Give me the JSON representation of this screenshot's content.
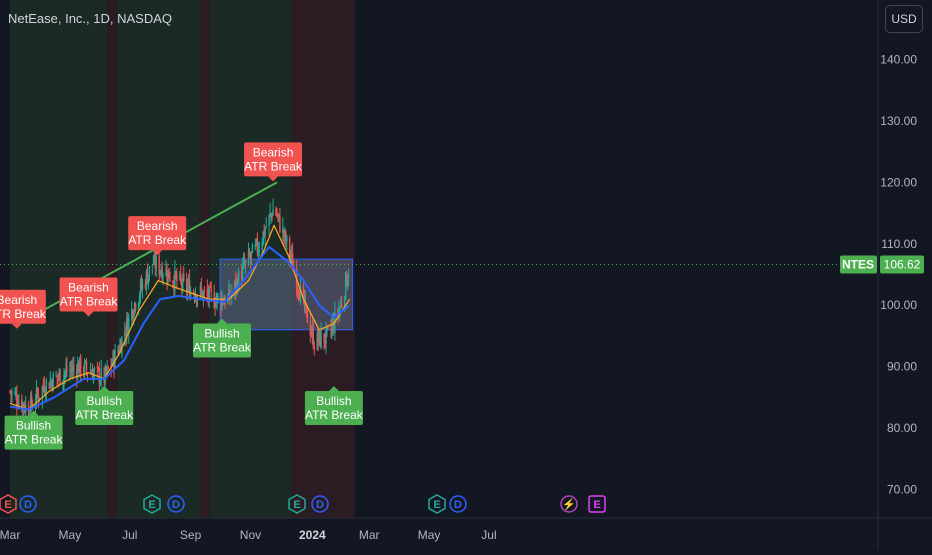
{
  "header": {
    "title": "NetEase, Inc., 1D, NASDAQ",
    "currency_button": "USD"
  },
  "price_axis": {
    "ticks": [
      "140.00",
      "130.00",
      "120.00",
      "110.00",
      "100.00",
      "90.00",
      "80.00",
      "70.00"
    ],
    "current_price": "106.62",
    "symbol": "NTES"
  },
  "time_axis": {
    "labels": [
      {
        "text": "Mar",
        "bold": false
      },
      {
        "text": "May",
        "bold": false
      },
      {
        "text": "Jul",
        "bold": false
      },
      {
        "text": "Sep",
        "bold": false
      },
      {
        "text": "Nov",
        "bold": false
      },
      {
        "text": "2024",
        "bold": true
      },
      {
        "text": "Mar",
        "bold": false
      },
      {
        "text": "May",
        "bold": false
      },
      {
        "text": "Jul",
        "bold": false
      }
    ]
  },
  "events": [
    {
      "type": "E",
      "kind": "earnings-past"
    },
    {
      "type": "D",
      "kind": "dividend"
    },
    {
      "type": "E",
      "kind": "earnings-past"
    },
    {
      "type": "D",
      "kind": "dividend"
    },
    {
      "type": "E",
      "kind": "earnings-past"
    },
    {
      "type": "D",
      "kind": "dividend"
    },
    {
      "type": "E",
      "kind": "earnings-past"
    },
    {
      "type": "D",
      "kind": "dividend"
    },
    {
      "type": "⚡",
      "kind": "split"
    },
    {
      "type": "E",
      "kind": "earnings-upcoming"
    }
  ],
  "colors": {
    "background": "#131722",
    "up": "#26a69a",
    "down": "#ef5350",
    "bull_label": "#4caf50",
    "bear_label": "#f05350",
    "ema_fast": "#f5a623",
    "ema_slow": "#2962ff",
    "trendline": "#4caf50",
    "box_fill": "#5d6987",
    "box_border": "#2962ff",
    "bull_band": "#1b2a25",
    "bear_band": "#2a1c22",
    "price_tag": "#4caf50"
  },
  "chart_data": {
    "type": "candlestick",
    "title": "NetEase, Inc., 1D, NASDAQ",
    "ylim": [
      65,
      148
    ],
    "x_range": [
      "2023-03-01",
      "2024-08-15"
    ],
    "current_price": 106.62,
    "series": [
      {
        "name": "",
        "kind": "price",
        "points": [
          [
            "2023-03-01",
            86
          ],
          [
            "2023-03-20",
            83
          ],
          [
            "2023-04-05",
            87
          ],
          [
            "2023-04-25",
            89
          ],
          [
            "2023-05-10",
            90
          ],
          [
            "2023-05-25",
            89
          ],
          [
            "2023-06-05",
            88
          ],
          [
            "2023-06-20",
            93
          ],
          [
            "2023-07-05",
            100
          ],
          [
            "2023-07-25",
            107
          ],
          [
            "2023-08-10",
            105
          ],
          [
            "2023-08-25",
            103
          ],
          [
            "2023-09-10",
            102
          ],
          [
            "2023-09-25",
            101
          ],
          [
            "2023-10-10",
            101
          ],
          [
            "2023-10-25",
            106
          ],
          [
            "2023-11-10",
            110
          ],
          [
            "2023-11-25",
            116
          ],
          [
            "2023-12-10",
            109
          ],
          [
            "2023-12-20",
            103
          ],
          [
            "2024-01-05",
            94
          ],
          [
            "2024-01-20",
            95
          ],
          [
            "2024-02-01",
            100
          ],
          [
            "2024-02-10",
            106.62
          ]
        ]
      },
      {
        "name": "",
        "kind": "ema_fast",
        "points": [
          [
            "2023-03-01",
            84
          ],
          [
            "2023-03-20",
            83
          ],
          [
            "2023-04-10",
            86
          ],
          [
            "2023-05-01",
            88
          ],
          [
            "2023-05-20",
            89
          ],
          [
            "2023-06-05",
            88
          ],
          [
            "2023-06-20",
            92
          ],
          [
            "2023-07-10",
            99
          ],
          [
            "2023-07-30",
            104
          ],
          [
            "2023-08-15",
            103
          ],
          [
            "2023-09-01",
            102
          ],
          [
            "2023-09-20",
            101
          ],
          [
            "2023-10-10",
            101
          ],
          [
            "2023-10-30",
            104
          ],
          [
            "2023-11-15",
            109
          ],
          [
            "2023-11-25",
            113
          ],
          [
            "2023-12-10",
            108
          ],
          [
            "2023-12-25",
            101
          ],
          [
            "2024-01-10",
            96
          ],
          [
            "2024-01-25",
            97
          ],
          [
            "2024-02-10",
            101
          ]
        ]
      },
      {
        "name": "",
        "kind": "ema_slow",
        "points": [
          [
            "2023-03-01",
            83.5
          ],
          [
            "2023-03-20",
            83
          ],
          [
            "2023-04-15",
            85
          ],
          [
            "2023-05-15",
            88
          ],
          [
            "2023-06-05",
            88
          ],
          [
            "2023-06-25",
            91
          ],
          [
            "2023-07-15",
            97
          ],
          [
            "2023-08-01",
            101
          ],
          [
            "2023-08-20",
            101.5
          ],
          [
            "2023-09-10",
            101
          ],
          [
            "2023-10-05",
            100.5
          ],
          [
            "2023-10-25",
            104
          ],
          [
            "2023-11-20",
            109.5
          ],
          [
            "2023-12-10",
            107
          ],
          [
            "2023-12-25",
            104
          ],
          [
            "2024-01-10",
            100
          ],
          [
            "2024-01-25",
            98
          ],
          [
            "2024-02-10",
            100
          ]
        ]
      }
    ],
    "trendline": [
      [
        "2023-03-10",
        97
      ],
      [
        "2023-11-28",
        120
      ]
    ],
    "zone": {
      "x0": "2023-10-01",
      "x1": "2024-02-13",
      "y0": 96,
      "y1": 107.5
    },
    "bands": [
      {
        "type": "bull",
        "x0": "2023-03-01",
        "x1": "2023-06-08"
      },
      {
        "type": "bear",
        "x0": "2023-06-08",
        "x1": "2023-06-18"
      },
      {
        "type": "bull",
        "x0": "2023-06-18",
        "x1": "2023-09-10"
      },
      {
        "type": "bear",
        "x0": "2023-09-10",
        "x1": "2023-09-20"
      },
      {
        "type": "bull",
        "x0": "2023-09-20",
        "x1": "2023-12-13"
      },
      {
        "type": "bear",
        "x0": "2023-12-13",
        "x1": "2024-02-15"
      }
    ],
    "signals": [
      {
        "type": "bear",
        "label1": "Bearish",
        "label2": "ATR Break",
        "date": "2023-03-08",
        "price": 96
      },
      {
        "type": "bull",
        "label1": "Bullish",
        "label2": "ATR Break",
        "date": "2023-03-25",
        "price": 83
      },
      {
        "type": "bear",
        "label1": "Bearish",
        "label2": "ATR Break",
        "date": "2023-05-20",
        "price": 98
      },
      {
        "type": "bull",
        "label1": "Bullish",
        "label2": "ATR Break",
        "date": "2023-06-05",
        "price": 87
      },
      {
        "type": "bear",
        "label1": "Bearish",
        "label2": "ATR Break",
        "date": "2023-07-29",
        "price": 108
      },
      {
        "type": "bull",
        "label1": "Bullish",
        "label2": "ATR Break",
        "date": "2023-10-03",
        "price": 98
      },
      {
        "type": "bear",
        "label1": "Bearish",
        "label2": "ATR Break",
        "date": "2023-11-24",
        "price": 120
      },
      {
        "type": "bull",
        "label1": "Bullish",
        "label2": "ATR Break",
        "date": "2024-01-25",
        "price": 87
      }
    ]
  }
}
